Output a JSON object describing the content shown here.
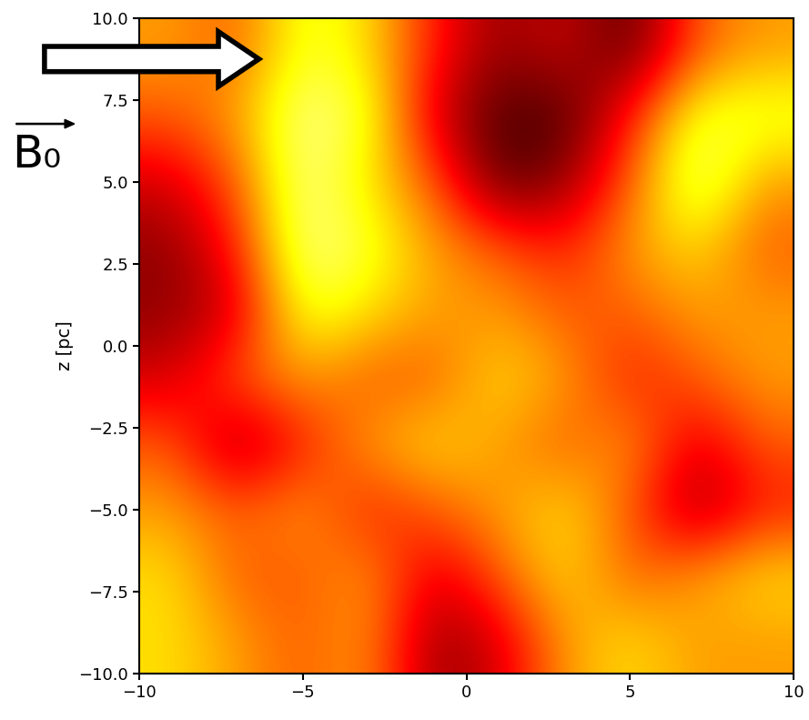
{
  "chart_data": {
    "type": "heatmap",
    "y_label": "z [pc]",
    "annotations": [
      "B₀"
    ],
    "xlim": [
      -10,
      10
    ],
    "ylim": [
      -10,
      10
    ],
    "xticks": [
      {
        "value": -10,
        "label": "−10"
      },
      {
        "value": -5,
        "label": "−5"
      },
      0,
      5,
      10
    ],
    "yticks": [
      {
        "value": -10,
        "label": "−10.0"
      },
      {
        "value": -7.5,
        "label": "−7.5"
      },
      {
        "value": -5,
        "label": "−5.0"
      },
      {
        "value": -2.5,
        "label": "−2.5"
      },
      {
        "value": 0,
        "label": "0.0"
      },
      {
        "value": 2.5,
        "label": "2.5"
      },
      {
        "value": 5,
        "label": "5.0"
      },
      {
        "value": 7.5,
        "label": "7.5"
      },
      {
        "value": 10,
        "label": "10.0"
      }
    ],
    "value_range": [
      0,
      1
    ],
    "cells": [
      [
        0.6,
        0.5,
        0.8,
        0.7,
        0.4,
        0.2,
        0.3,
        0.1,
        0.5,
        0.6
      ],
      [
        0.5,
        0.6,
        0.9,
        0.8,
        0.3,
        0.1,
        0.1,
        0.4,
        0.8,
        0.8
      ],
      [
        0.3,
        0.5,
        0.9,
        0.7,
        0.5,
        0.1,
        0.2,
        0.5,
        0.9,
        0.6
      ],
      [
        0.2,
        0.4,
        0.9,
        0.8,
        0.6,
        0.5,
        0.4,
        0.6,
        0.7,
        0.5
      ],
      [
        0.2,
        0.3,
        0.8,
        0.7,
        0.6,
        0.6,
        0.5,
        0.5,
        0.6,
        0.6
      ],
      [
        0.3,
        0.5,
        0.6,
        0.5,
        0.5,
        0.7,
        0.6,
        0.4,
        0.5,
        0.6
      ],
      [
        0.5,
        0.2,
        0.4,
        0.6,
        0.7,
        0.6,
        0.5,
        0.6,
        0.3,
        0.5
      ],
      [
        0.6,
        0.5,
        0.6,
        0.4,
        0.5,
        0.6,
        0.7,
        0.5,
        0.2,
        0.4
      ],
      [
        0.7,
        0.5,
        0.5,
        0.6,
        0.3,
        0.5,
        0.7,
        0.5,
        0.6,
        0.7
      ],
      [
        0.7,
        0.6,
        0.5,
        0.6,
        0.2,
        0.3,
        0.6,
        0.7,
        0.6,
        0.6
      ]
    ]
  }
}
